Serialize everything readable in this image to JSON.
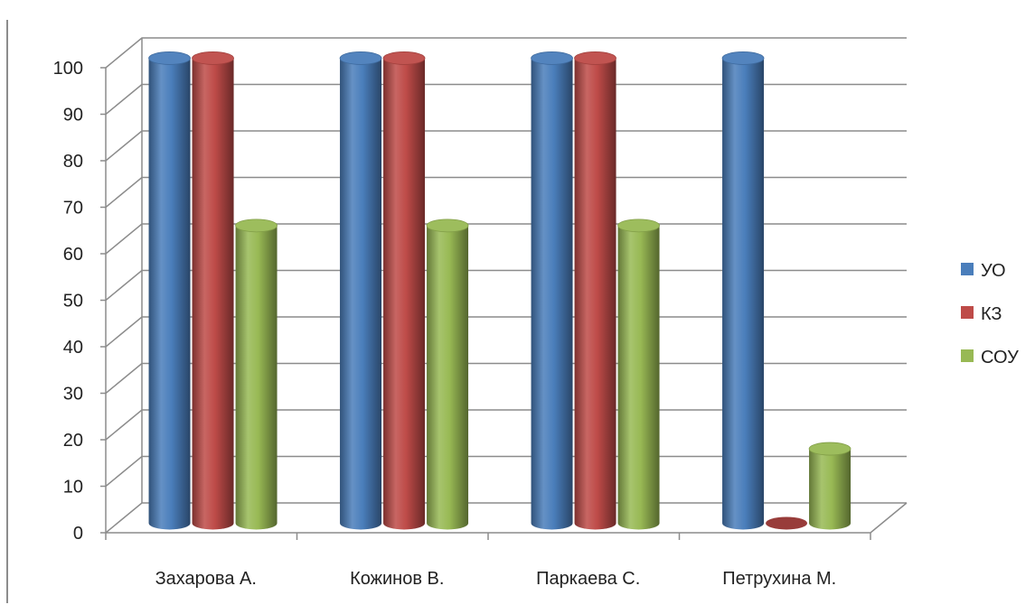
{
  "chart_data": {
    "type": "bar",
    "categories": [
      "Захарова А.",
      "Кожинов В.",
      "Паркаева С.",
      "Петрухина М."
    ],
    "series": [
      {
        "name": "УО",
        "color": "#4a7ebb",
        "values": [
          100,
          100,
          100,
          100
        ]
      },
      {
        "name": "КЗ",
        "color": "#be4b48",
        "values": [
          100,
          100,
          100,
          0
        ]
      },
      {
        "name": "СОУ",
        "color": "#98b954",
        "values": [
          64,
          64,
          64,
          16
        ]
      }
    ],
    "ylim": [
      0,
      100
    ],
    "yticks": [
      0,
      10,
      20,
      30,
      40,
      50,
      60,
      70,
      80,
      90,
      100
    ],
    "grid": true,
    "legend": "right",
    "style": "3d-cylinder"
  }
}
